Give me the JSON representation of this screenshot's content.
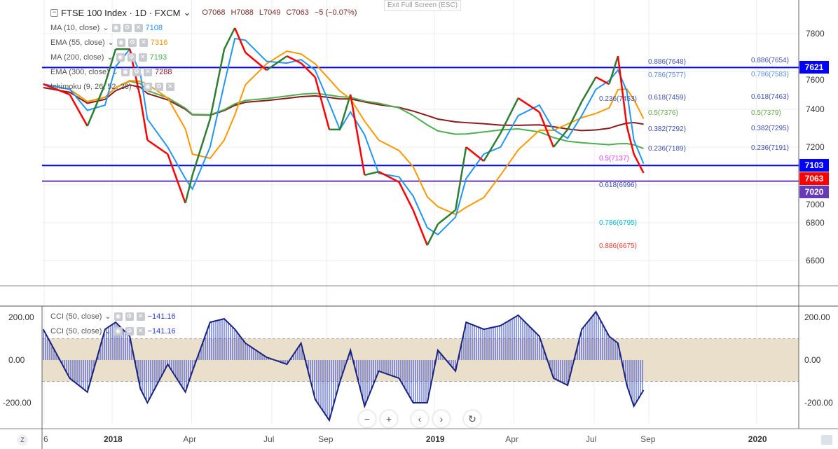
{
  "header": {
    "title": "FTSE 100 Index · 1D · FXCM",
    "open": "O7068",
    "high": "H7088",
    "low": "L7049",
    "close": "C7063",
    "change": "−5 (−0.07%)",
    "exit_fullscreen": "Exit Full Screen (ESC)"
  },
  "indicators": [
    {
      "label": "MA (10, close)",
      "value": "7108",
      "color": "#2196f3"
    },
    {
      "label": "EMA (55, close)",
      "value": "7316",
      "color": "#ff9800"
    },
    {
      "label": "MA (200, close)",
      "value": "7193",
      "color": "#4caf50"
    },
    {
      "label": "EMA (300, close)",
      "value": "7288",
      "color": "#8b1a1a"
    },
    {
      "label": "Ichimoku (9, 26, 52, 26)",
      "value": "",
      "color": "#999"
    }
  ],
  "cci_legends": [
    {
      "label": "CCI (50, close)",
      "value": "−141.16"
    },
    {
      "label": "CCI (50, close)",
      "value": "−141.16"
    }
  ],
  "price_axis": {
    "ticks": [
      "7800",
      "7600",
      "7400",
      "7200",
      "7000",
      "6800",
      "6600"
    ],
    "values": [
      7800,
      7600,
      7400,
      7200,
      7000,
      6800,
      6600
    ]
  },
  "cci_axis": {
    "ticks": [
      "200.00",
      "0.00",
      "-200.00"
    ],
    "values": [
      200,
      0,
      -200
    ],
    "band": [
      -100,
      100
    ]
  },
  "time_axis": {
    "labels": [
      "6",
      "2018",
      "Apr",
      "Jul",
      "Sep",
      "2019",
      "Apr",
      "Jul",
      "Sep",
      "2020"
    ],
    "dates": [
      "2017-10-16",
      "2018-01-01",
      "2018-04-01",
      "2018-07-01",
      "2018-09-01",
      "2019-01-01",
      "2019-04-01",
      "2019-07-01",
      "2019-09-01",
      "2020-01-01"
    ],
    "bold": [
      false,
      true,
      false,
      false,
      false,
      true,
      false,
      false,
      false,
      true
    ]
  },
  "badges": [
    {
      "value": "7621",
      "color": "#0000ff"
    },
    {
      "value": "7103",
      "color": "#0000ff"
    },
    {
      "value": "7063",
      "color": "#ff0000"
    },
    {
      "value": "7020",
      "color": "#673ab7"
    }
  ],
  "hlines": [
    {
      "price": 7621,
      "color": "#0000ff"
    },
    {
      "price": 7103,
      "color": "#0000ff"
    },
    {
      "price": 7020,
      "color": "#673ab7"
    }
  ],
  "fib_mid": [
    {
      "text": "0.236(7453)",
      "price": 7453,
      "color": "#3f51b5"
    },
    {
      "text": "0.5(7137)",
      "price": 7137,
      "color": "#e040fb"
    },
    {
      "text": "0.618(6996)",
      "price": 6996,
      "color": "#3f51b5"
    },
    {
      "text": "0.786(6795)",
      "price": 6795,
      "color": "#00bcd4"
    },
    {
      "text": "0.886(6675)",
      "price": 6675,
      "color": "#f44336"
    }
  ],
  "fib_a": [
    {
      "text": "0.886(7648)",
      "price": 7648,
      "color": "#3f51b5"
    },
    {
      "text": "0.786(7577)",
      "price": 7577,
      "color": "#5c8ee6"
    },
    {
      "text": "0.618(7459)",
      "price": 7459,
      "color": "#3f51b5"
    },
    {
      "text": "0.5(7376)",
      "price": 7376,
      "color": "#66a84c"
    },
    {
      "text": "0.382(7292)",
      "price": 7292,
      "color": "#3f51b5"
    },
    {
      "text": "0.236(7189)",
      "price": 7189,
      "color": "#3f51b5"
    }
  ],
  "fib_b": [
    {
      "text": "0.886(7654)",
      "price": 7654,
      "color": "#3f51b5"
    },
    {
      "text": "0.786(7583)",
      "price": 7583,
      "color": "#5c8ee6"
    },
    {
      "text": "0.618(7463)",
      "price": 7463,
      "color": "#3f51b5"
    },
    {
      "text": "0.5(7379)",
      "price": 7379,
      "color": "#66a84c"
    },
    {
      "text": "0.382(7295)",
      "price": 7295,
      "color": "#3f51b5"
    },
    {
      "text": "0.236(7191)",
      "price": 7191,
      "color": "#3f51b5"
    }
  ],
  "chart_data": {
    "type": "line",
    "dates": [
      "2017-10-15",
      "2017-11-14",
      "2017-12-04",
      "2017-12-24",
      "2018-01-05",
      "2018-01-21",
      "2018-02-02",
      "2018-02-10",
      "2018-03-05",
      "2018-03-25",
      "2018-04-02",
      "2018-04-22",
      "2018-05-08",
      "2018-05-20",
      "2018-06-01",
      "2018-06-25",
      "2018-07-18",
      "2018-08-03",
      "2018-08-19",
      "2018-09-04",
      "2018-09-16",
      "2018-09-28",
      "2018-10-14",
      "2018-10-30",
      "2018-11-22",
      "2018-12-08",
      "2018-12-24",
      "2019-01-05",
      "2019-01-25",
      "2019-02-06",
      "2019-02-26",
      "2019-03-17",
      "2019-04-06",
      "2019-04-30",
      "2019-05-16",
      "2019-06-01",
      "2019-06-17",
      "2019-07-03",
      "2019-07-18",
      "2019-07-28",
      "2019-08-07",
      "2019-08-15",
      "2019-08-26"
    ],
    "close": [
      7533,
      7478,
      7311,
      7533,
      7718,
      7718,
      7459,
      7237,
      7163,
      6904,
      7052,
      7348,
      7718,
      7830,
      7700,
      7607,
      7681,
      7644,
      7570,
      7293,
      7293,
      7478,
      7052,
      7070,
      7015,
      6867,
      6681,
      6793,
      6867,
      7200,
      7126,
      7274,
      7459,
      7385,
      7200,
      7293,
      7441,
      7570,
      7533,
      7681,
      7311,
      7163,
      7063
    ],
    "cci": [
      144,
      -85,
      -150,
      144,
      177,
      111,
      -134,
      -200,
      -20,
      -150,
      -52,
      177,
      193,
      144,
      79,
      13,
      -20,
      79,
      -184,
      -282,
      -102,
      46,
      -216,
      -52,
      -85,
      -200,
      -200,
      46,
      -52,
      177,
      144,
      161,
      210,
      111,
      -85,
      -118,
      144,
      226,
      111,
      79,
      -118,
      -216,
      -141
    ]
  },
  "nav": {
    "zoom_out": "−",
    "zoom_in": "+",
    "left": "‹",
    "right": "›",
    "reset": "↻",
    "z": "Z"
  }
}
